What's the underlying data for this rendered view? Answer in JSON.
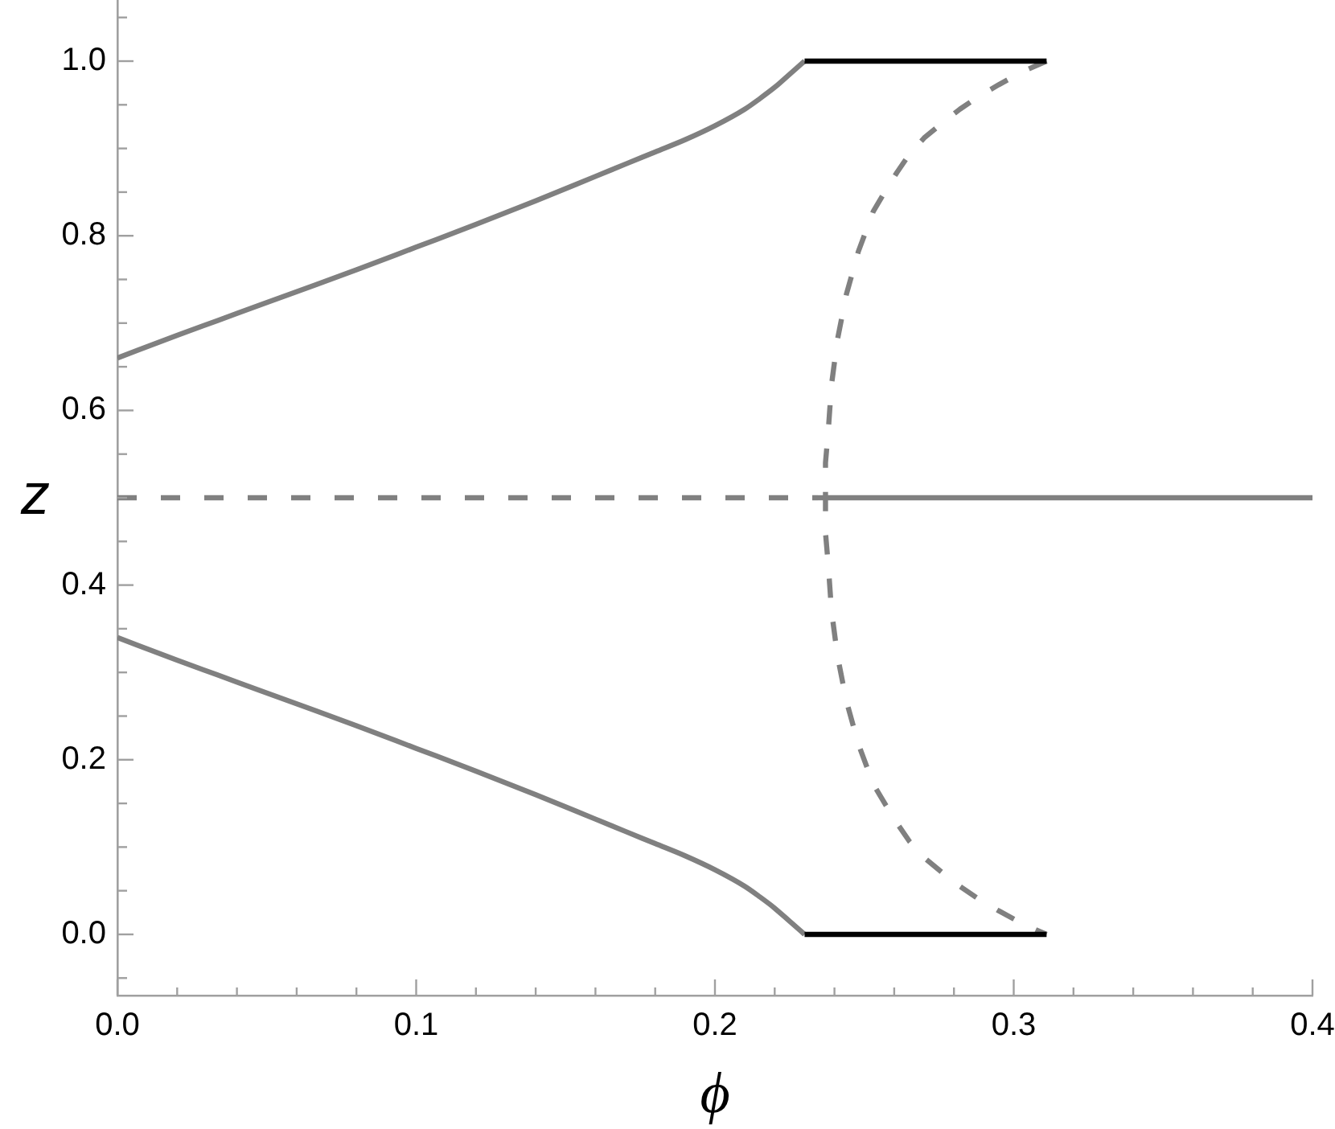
{
  "chart_data": {
    "type": "line",
    "xlabel": "ϕ",
    "ylabel": "z",
    "xlim": [
      0,
      0.4
    ],
    "ylim": [
      -0.07,
      1.07
    ],
    "xticks": [
      {
        "value": 0,
        "label": "0.0"
      },
      {
        "value": 0.02,
        "label": null
      },
      {
        "value": 0.04,
        "label": null
      },
      {
        "value": 0.06,
        "label": null
      },
      {
        "value": 0.08,
        "label": null
      },
      0.1,
      {
        "value": 0.12,
        "label": null
      },
      {
        "value": 0.14,
        "label": null
      },
      {
        "value": 0.16,
        "label": null
      },
      {
        "value": 0.18,
        "label": null
      },
      0.2,
      {
        "value": 0.22,
        "label": null
      },
      {
        "value": 0.24,
        "label": null
      },
      {
        "value": 0.26,
        "label": null
      },
      {
        "value": 0.28,
        "label": null
      },
      0.3,
      {
        "value": 0.32,
        "label": null
      },
      {
        "value": 0.34,
        "label": null
      },
      {
        "value": 0.36,
        "label": null
      },
      {
        "value": 0.38,
        "label": null
      },
      0.4
    ],
    "yticks": [
      {
        "value": -0.05,
        "label": null
      },
      {
        "value": 0,
        "label": "0.0"
      },
      {
        "value": 0.05,
        "label": null
      },
      {
        "value": 0.1,
        "label": null
      },
      {
        "value": 0.15,
        "label": null
      },
      0.2,
      {
        "value": 0.25,
        "label": null
      },
      {
        "value": 0.3,
        "label": null
      },
      {
        "value": 0.35,
        "label": null
      },
      0.4,
      {
        "value": 0.45,
        "label": null
      },
      {
        "value": 0.5,
        "label": null
      },
      {
        "value": 0.55,
        "label": null
      },
      0.6,
      {
        "value": 0.65,
        "label": null
      },
      {
        "value": 0.7,
        "label": null
      },
      {
        "value": 0.75,
        "label": null
      },
      0.8,
      {
        "value": 0.85,
        "label": null
      },
      {
        "value": 0.9,
        "label": null
      },
      {
        "value": 0.95,
        "label": null
      },
      {
        "value": 1,
        "label": "1.0"
      },
      {
        "value": 1.05,
        "label": null
      }
    ],
    "grid": false,
    "marker": "none",
    "series": [
      {
        "color": "#808080",
        "line_style": "solid",
        "x": [
          0,
          0.02,
          0.04,
          0.06,
          0.08,
          0.1,
          0.12,
          0.14,
          0.16,
          0.17,
          0.18,
          0.19,
          0.2,
          0.21,
          0.215,
          0.22,
          0.225,
          0.23
        ],
        "values": [
          0.66,
          0.686,
          0.711,
          0.736,
          0.761,
          0.787,
          0.813,
          0.84,
          0.868,
          0.882,
          0.896,
          0.91,
          0.926,
          0.945,
          0.957,
          0.97,
          0.985,
          1
        ]
      },
      {
        "color": "#808080",
        "line_style": "solid",
        "x": [
          0,
          0.02,
          0.04,
          0.06,
          0.08,
          0.1,
          0.12,
          0.14,
          0.16,
          0.17,
          0.18,
          0.19,
          0.2,
          0.21,
          0.215,
          0.22,
          0.225,
          0.23
        ],
        "values": [
          0.34,
          0.314,
          0.289,
          0.264,
          0.239,
          0.213,
          0.187,
          0.16,
          0.132,
          0.118,
          0.104,
          0.09,
          0.074,
          0.055,
          0.043,
          0.03,
          0.015,
          0
        ]
      },
      {
        "color": "#808080",
        "line_style": "dashed",
        "x": [
          0,
          0.237
        ],
        "values": [
          0.5,
          0.5
        ]
      },
      {
        "color": "#808080",
        "line_style": "solid",
        "x": [
          0.237,
          0.4
        ],
        "values": [
          0.5,
          0.5
        ]
      },
      {
        "color": "#808080",
        "line_style": "dashed",
        "x": [
          0.311,
          0.303,
          0.295,
          0.288,
          0.282,
          0.276,
          0.27,
          0.265,
          0.261,
          0.257,
          0.253,
          0.248,
          0.244,
          0.241,
          0.239,
          0.238,
          0.237,
          0.237,
          0.237,
          0.238,
          0.239,
          0.241,
          0.244,
          0.248,
          0.253,
          0.257,
          0.261,
          0.265,
          0.27,
          0.276,
          0.282,
          0.288,
          0.295,
          0.303,
          0.311
        ],
        "values": [
          1,
          0.988,
          0.973,
          0.959,
          0.945,
          0.929,
          0.912,
          0.893,
          0.873,
          0.851,
          0.828,
          0.782,
          0.733,
          0.681,
          0.629,
          0.58,
          0.54,
          0.5,
          0.46,
          0.42,
          0.371,
          0.319,
          0.267,
          0.218,
          0.172,
          0.149,
          0.127,
          0.107,
          0.088,
          0.071,
          0.055,
          0.041,
          0.027,
          0.012,
          0
        ]
      },
      {
        "color": "#000000",
        "line_style": "solid",
        "x": [
          0.23,
          0.311
        ],
        "values": [
          1,
          1
        ]
      },
      {
        "color": "#000000",
        "line_style": "solid",
        "x": [
          0.23,
          0.311
        ],
        "values": [
          0,
          0
        ]
      }
    ]
  }
}
